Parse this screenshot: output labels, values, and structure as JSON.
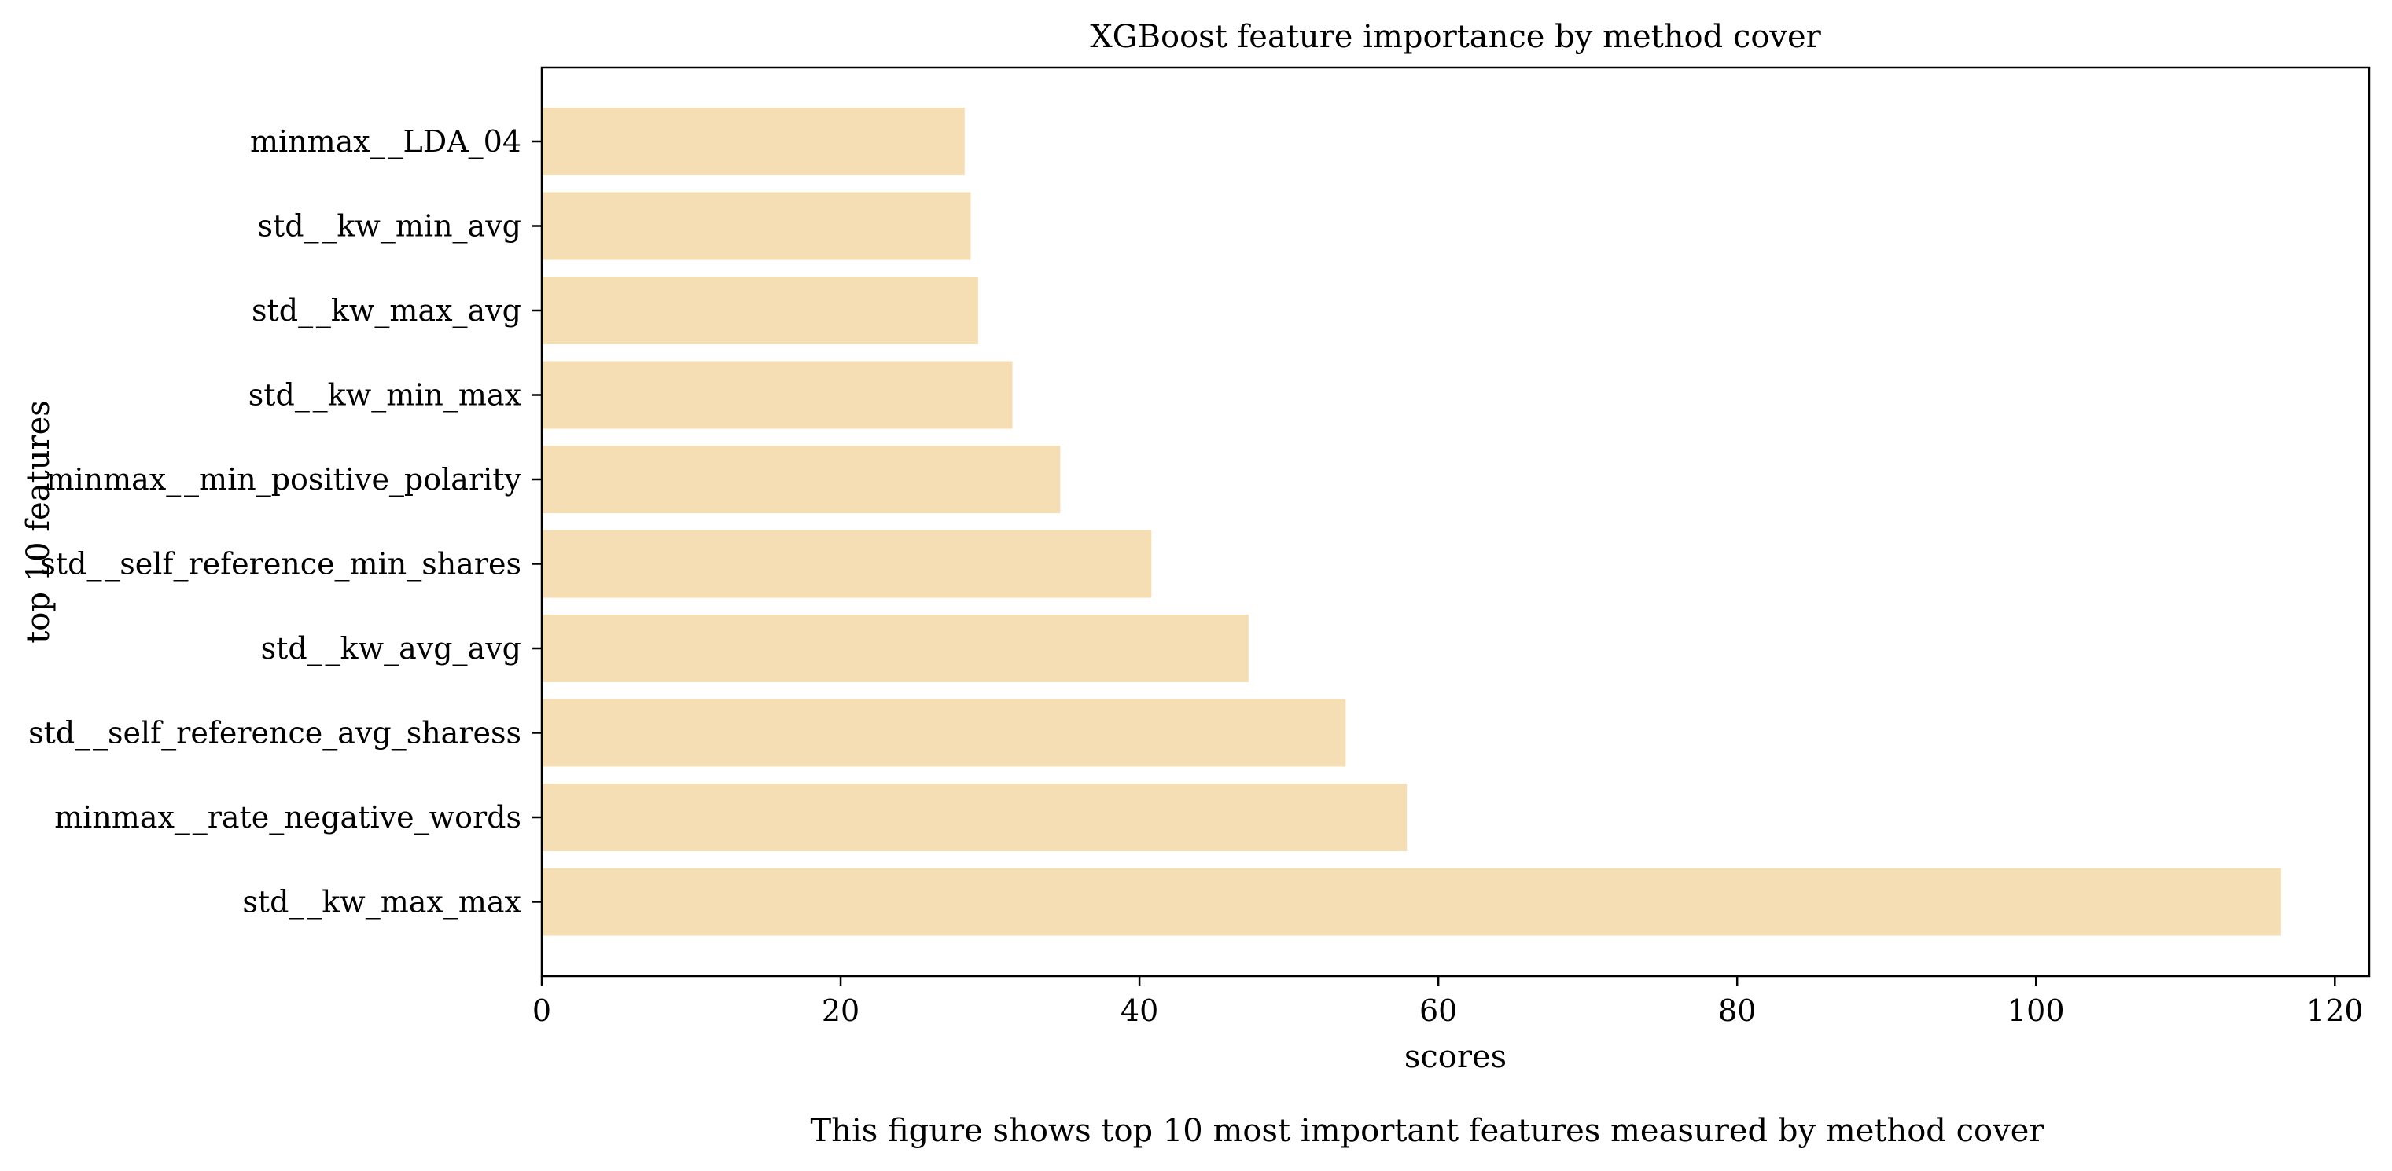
{
  "chart_data": {
    "type": "bar",
    "orientation": "horizontal",
    "title": "XGBoost feature importance by method cover",
    "xlabel": "scores",
    "ylabel": "top 10 features",
    "caption": "This figure shows top 10 most important features measured by method cover",
    "categories": [
      "minmax__LDA_04",
      "std__kw_min_avg",
      "std__kw_max_avg",
      "std__kw_min_max",
      "minmax__min_positive_polarity",
      "std__self_reference_min_shares",
      "std__kw_avg_avg",
      "std__self_reference_avg_sharess",
      "minmax__rate_negative_words",
      "std__kw_max_max"
    ],
    "category_display": [
      "minmax_ _LDA_04",
      "std_ _kw_min_avg",
      "std_ _kw_max_avg",
      "std_ _kw_min_max",
      "minmax_ _min_positive_polarity",
      "std_ _self_reference_min_shares",
      "std_ _kw_avg_avg",
      "std_ _self_reference_avg_sharess",
      "minmax_ _rate_negative_words",
      "std_ _kw_max_max"
    ],
    "values": [
      28.3,
      28.7,
      29.2,
      31.5,
      34.7,
      40.8,
      47.3,
      53.8,
      57.9,
      116.4
    ],
    "xlim": [
      0,
      122.3
    ],
    "xticks": [
      0,
      20,
      40,
      60,
      80,
      100,
      120
    ],
    "xtick_labels": [
      "0",
      "20",
      "40",
      "60",
      "80",
      "100",
      "120"
    ],
    "bar_color": "#f5deb3",
    "grid": false,
    "legend": "none"
  }
}
